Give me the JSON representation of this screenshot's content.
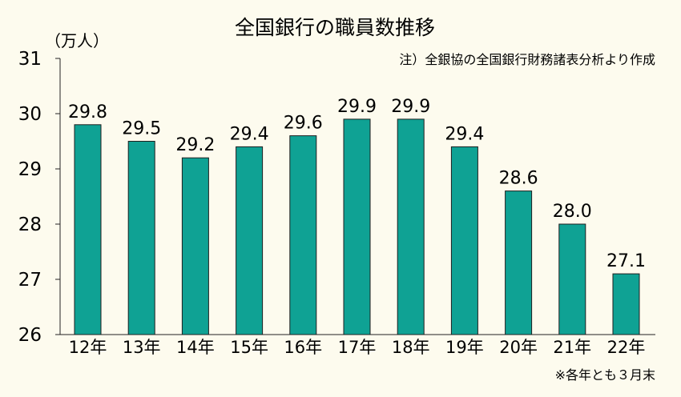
{
  "chart_data": {
    "type": "bar",
    "title": "全国銀行の職員数推移",
    "ylabel": "（万人）",
    "note": "注）全銀協の全国銀行財務諸表分析より作成",
    "footnote": "※各年とも３月末",
    "categories": [
      "12年",
      "13年",
      "14年",
      "15年",
      "16年",
      "17年",
      "18年",
      "19年",
      "20年",
      "21年",
      "22年"
    ],
    "values": [
      29.8,
      29.5,
      29.2,
      29.4,
      29.6,
      29.9,
      29.9,
      29.4,
      28.6,
      28.0,
      27.1
    ],
    "value_labels": [
      "29.8",
      "29.5",
      "29.2",
      "29.4",
      "29.6",
      "29.9",
      "29.9",
      "29.4",
      "28.6",
      "28.0",
      "27.1"
    ],
    "ylim": [
      26,
      31
    ],
    "yticks": [
      "26",
      "27",
      "28",
      "29",
      "30",
      "31"
    ],
    "grid": false,
    "colors": {
      "bar": "#0fa294",
      "background": "#fdfbee",
      "axis": "#222222"
    }
  }
}
